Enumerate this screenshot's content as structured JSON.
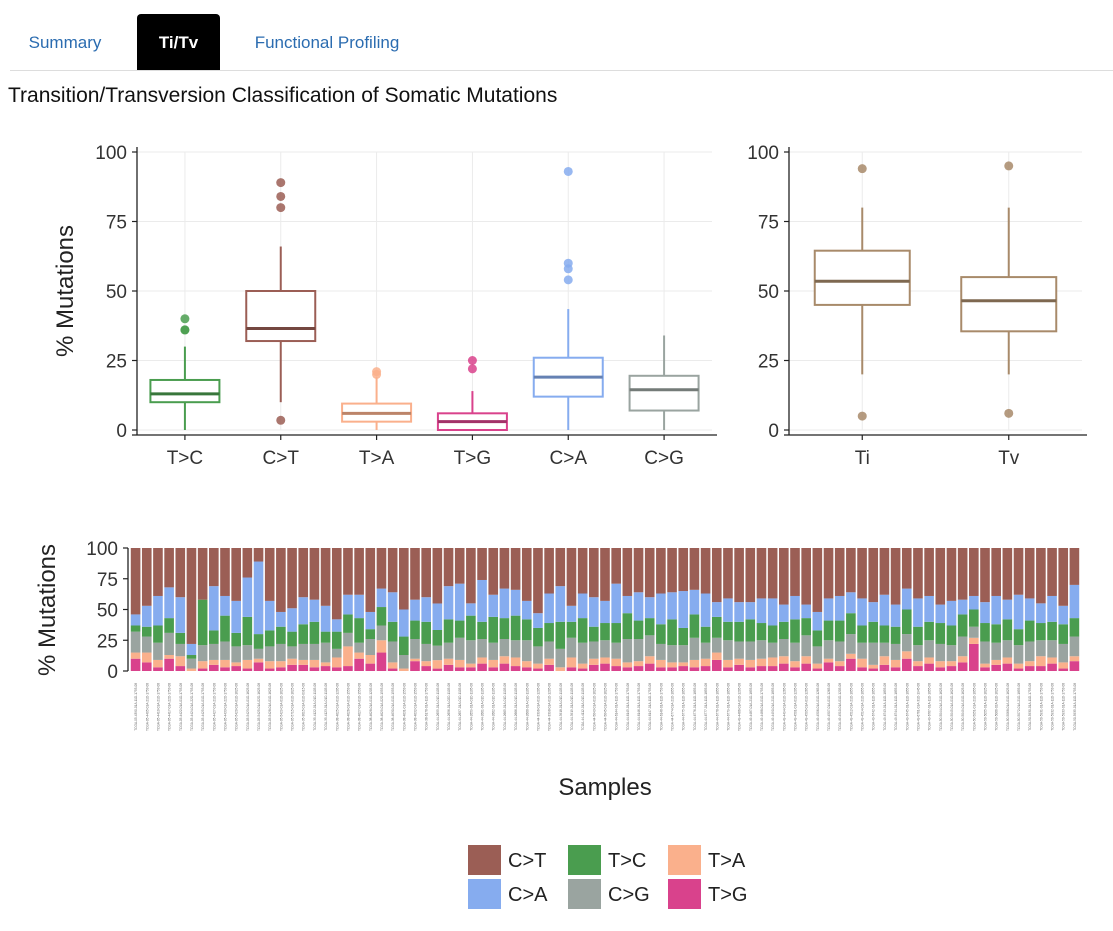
{
  "tabs": [
    {
      "label": "Summary",
      "active": false
    },
    {
      "label": "Ti/Tv",
      "active": true
    },
    {
      "label": "Functional Profiling",
      "active": false
    }
  ],
  "heading": "Transition/Transversion Classification of Somatic Mutations",
  "colors": {
    "C>T": "#9b5e55",
    "T>C": "#4a9d4f",
    "T>A": "#fab08c",
    "T>G": "#d9428c",
    "C>A": "#86acef",
    "C>G": "#9aa4a0",
    "Ti": "#a88a6a",
    "Tv": "#a88a6a"
  },
  "chart_data": [
    {
      "type": "boxplot",
      "ylabel": "% Mutations",
      "ylim": [
        0,
        100
      ],
      "yticks": [
        0,
        25,
        50,
        75,
        100
      ],
      "grid": true,
      "categories": [
        "T>C",
        "C>T",
        "T>A",
        "T>G",
        "C>A",
        "C>G"
      ],
      "boxes": [
        {
          "name": "T>C",
          "whisker_low": 0,
          "q1": 10,
          "median": 13,
          "q3": 18,
          "whisker_high": 30,
          "outliers": [
            36,
            36,
            40
          ]
        },
        {
          "name": "C>T",
          "whisker_low": 10,
          "q1": 32,
          "median": 36.5,
          "q3": 50,
          "whisker_high": 66,
          "outliers": [
            3.5,
            80,
            84,
            89
          ]
        },
        {
          "name": "T>A",
          "whisker_low": 0,
          "q1": 3,
          "median": 6,
          "q3": 9.5,
          "whisker_high": 19,
          "outliers": [
            20,
            21
          ]
        },
        {
          "name": "T>G",
          "whisker_low": 0,
          "q1": 0,
          "median": 3,
          "q3": 6,
          "whisker_high": 14,
          "outliers": [
            22,
            25
          ]
        },
        {
          "name": "C>A",
          "whisker_low": 0,
          "q1": 12,
          "median": 19,
          "q3": 26,
          "whisker_high": 43.5,
          "outliers": [
            54,
            58,
            60,
            93
          ]
        },
        {
          "name": "C>G",
          "whisker_low": 0,
          "q1": 7,
          "median": 14.5,
          "q3": 19.5,
          "whisker_high": 34,
          "outliers": []
        }
      ]
    },
    {
      "type": "boxplot",
      "ylim": [
        0,
        100
      ],
      "yticks": [
        0,
        25,
        50,
        75,
        100
      ],
      "grid": true,
      "categories": [
        "Ti",
        "Tv"
      ],
      "boxes": [
        {
          "name": "Ti",
          "whisker_low": 20,
          "q1": 45,
          "median": 53.5,
          "q3": 64.5,
          "whisker_high": 80,
          "outliers": [
            5,
            94
          ]
        },
        {
          "name": "Tv",
          "whisker_low": 20,
          "q1": 35.5,
          "median": 46.5,
          "q3": 55,
          "whisker_high": 80,
          "outliers": [
            6,
            95
          ]
        }
      ]
    },
    {
      "type": "stacked_bar",
      "ylabel": "% Mutations",
      "xlabel": "Samples",
      "ylim": [
        0,
        100
      ],
      "yticks": [
        0,
        25,
        50,
        75,
        100
      ],
      "stack_order": [
        "T>G",
        "T>A",
        "C>G",
        "T>C",
        "C>A",
        "C>T"
      ],
      "sample_count": 85,
      "legend": {
        "position": "bottom",
        "entries": [
          "C>T",
          "T>C",
          "T>A",
          "C>A",
          "C>G",
          "T>G"
        ]
      },
      "series": [
        {
          "name": "T>G",
          "values": [
            10,
            7,
            3,
            10,
            4,
            0,
            2,
            5,
            3,
            4,
            2,
            7,
            2,
            3,
            5,
            5,
            3,
            4,
            3,
            4,
            10,
            6,
            15,
            2,
            0,
            8,
            4,
            2,
            5,
            3,
            3,
            6,
            3,
            6,
            4,
            3,
            2,
            5,
            0,
            3,
            2,
            5,
            6,
            4,
            3,
            4,
            6,
            3,
            3,
            4,
            3,
            4,
            9,
            3,
            5,
            3,
            4,
            4,
            6,
            3,
            6,
            2,
            7,
            4,
            10,
            3,
            2,
            5,
            3,
            10,
            4,
            6,
            3,
            4,
            7,
            22,
            3,
            5,
            6,
            2,
            4,
            4,
            6,
            2,
            8
          ]
        },
        {
          "name": "T>A",
          "values": [
            5,
            8,
            6,
            3,
            8,
            2,
            6,
            4,
            6,
            3,
            7,
            3,
            6,
            5,
            5,
            4,
            6,
            3,
            8,
            16,
            5,
            7,
            10,
            5,
            2,
            2,
            4,
            7,
            5,
            6,
            3,
            5,
            6,
            6,
            7,
            5,
            4,
            5,
            3,
            8,
            4,
            5,
            5,
            6,
            4,
            4,
            6,
            6,
            4,
            3,
            6,
            6,
            6,
            6,
            5,
            6,
            6,
            7,
            6,
            5,
            6,
            4,
            3,
            4,
            4,
            7,
            3,
            7,
            6,
            6,
            4,
            5,
            5,
            4,
            5,
            5,
            3,
            4,
            5,
            4,
            4,
            8,
            5,
            5,
            4
          ]
        },
        {
          "name": "C>G",
          "values": [
            17,
            13,
            14,
            18,
            10,
            8,
            13,
            13,
            15,
            13,
            12,
            8,
            12,
            14,
            10,
            13,
            13,
            16,
            7,
            11,
            8,
            13,
            12,
            17,
            11,
            16,
            14,
            12,
            13,
            18,
            19,
            15,
            14,
            14,
            14,
            17,
            14,
            14,
            15,
            16,
            17,
            14,
            14,
            13,
            19,
            18,
            17,
            13,
            14,
            14,
            18,
            13,
            12,
            16,
            14,
            15,
            15,
            12,
            14,
            15,
            17,
            14,
            15,
            16,
            16,
            13,
            18,
            11,
            13,
            14,
            13,
            14,
            14,
            13,
            16,
            9,
            18,
            14,
            14,
            15,
            16,
            13,
            14,
            15,
            16
          ]
        },
        {
          "name": "T>C",
          "values": [
            5,
            8,
            14,
            12,
            9,
            3,
            37,
            11,
            21,
            11,
            23,
            12,
            13,
            14,
            12,
            16,
            18,
            9,
            14,
            15,
            20,
            8,
            15,
            16,
            15,
            15,
            18,
            13,
            19,
            14,
            20,
            14,
            21,
            17,
            20,
            17,
            15,
            15,
            22,
            13,
            20,
            12,
            14,
            16,
            21,
            15,
            14,
            16,
            21,
            14,
            19,
            13,
            17,
            15,
            16,
            18,
            14,
            14,
            14,
            19,
            14,
            13,
            16,
            17,
            17,
            14,
            17,
            14,
            14,
            20,
            15,
            15,
            17,
            16,
            18,
            14,
            15,
            15,
            17,
            13,
            17,
            14,
            15,
            16,
            15
          ]
        },
        {
          "name": "C>A",
          "values": [
            9,
            17,
            24,
            25,
            29,
            9,
            0,
            36,
            16,
            26,
            32,
            59,
            24,
            12,
            19,
            22,
            18,
            21,
            10,
            16,
            19,
            14,
            15,
            24,
            22,
            17,
            20,
            22,
            27,
            30,
            10,
            34,
            18,
            24,
            21,
            15,
            12,
            24,
            29,
            13,
            20,
            24,
            18,
            32,
            14,
            23,
            17,
            25,
            22,
            30,
            20,
            27,
            12,
            19,
            16,
            14,
            20,
            22,
            14,
            19,
            11,
            15,
            18,
            20,
            17,
            22,
            16,
            25,
            18,
            17,
            23,
            21,
            15,
            20,
            12,
            11,
            17,
            23,
            16,
            28,
            18,
            16,
            21,
            15,
            27
          ]
        },
        {
          "name": "C>T",
          "values": [
            54,
            47,
            39,
            32,
            40,
            78,
            42,
            31,
            39,
            43,
            24,
            11,
            43,
            52,
            49,
            40,
            42,
            47,
            58,
            38,
            38,
            52,
            33,
            36,
            50,
            42,
            40,
            46,
            31,
            29,
            45,
            26,
            38,
            33,
            34,
            43,
            53,
            37,
            31,
            47,
            37,
            40,
            43,
            29,
            39,
            36,
            40,
            37,
            36,
            35,
            34,
            37,
            44,
            41,
            44,
            44,
            41,
            41,
            46,
            39,
            46,
            52,
            41,
            39,
            36,
            41,
            44,
            38,
            46,
            33,
            41,
            39,
            46,
            43,
            42,
            39,
            44,
            39,
            42,
            38,
            41,
            45,
            39,
            47,
            30
          ]
        }
      ],
      "sample_labels": [
        "TCGA-05-4390-01A-11D-1753-08",
        "TCGA-05-4405-01A-21D-1753-08",
        "TCGA-05-4410-01A-21D-1753-08",
        "TCGA-05-4417-01A-22D-1753-08",
        "TCGA-05-4422-01A-01D-1753-08",
        "TCGA-05-4424-01A-22D-1753-08",
        "TCGA-05-4425-01A-01D-1753-08",
        "TCGA-05-4427-01A-21D-1753-08",
        "TCGA-05-4433-01A-22D-1753-08",
        "TCGA-05-5420-01A-01D-1625-08",
        "TCGA-05-5423-01A-01D-1625-08",
        "TCGA-05-5425-01A-02D-1625-08",
        "TCGA-05-5428-01A-01D-1625-08",
        "TCGA-05-5429-01A-01D-1625-08",
        "TCGA-05-5715-01A-01D-1625-08",
        "TCGA-35-3615-01A-01D-0915-08",
        "TCGA-35-4122-01A-01D-1105-08",
        "TCGA-35-4123-01A-01D-1105-08",
        "TCGA-38-4625-01A-01D-1205-08",
        "TCGA-38-4626-01A-01D-1553-08",
        "TCGA-38-4627-01A-01D-1553-08",
        "TCGA-38-4628-01A-01D-1205-08",
        "TCGA-38-4629-01A-02D-1553-08",
        "TCGA-38-4630-01A-01D-1553-08",
        "TCGA-38-4631-01A-01D-1553-08",
        "TCGA-38-4632-01A-01D-1553-08",
        "TCGA-38-6178-01A-11D-1753-08",
        "TCGA-44-2655-01A-01D-1105-08",
        "TCGA-44-2656-01A-02D-1105-08",
        "TCGA-44-2657-01A-01D-1105-08",
        "TCGA-44-2659-01A-01D-1105-08",
        "TCGA-44-2661-01A-01D-1105-08",
        "TCGA-44-2662-01A-01D-1105-08",
        "TCGA-44-2665-01A-01D-1105-08",
        "TCGA-44-2666-01A-01D-1105-08",
        "TCGA-44-2668-01A-01D-1105-08",
        "TCGA-44-3396-01A-01D-1205-08",
        "TCGA-44-3398-01A-01D-1205-08",
        "TCGA-44-3918-01A-01D-1105-08",
        "TCGA-44-3919-01A-01D-1105-08",
        "TCGA-44-4112-01A-01D-1105-08",
        "TCGA-44-5643-01A-01D-1625-08",
        "TCGA-44-5645-01A-01D-1625-08",
        "TCGA-44-6144-01A-11D-1753-08",
        "TCGA-44-6145-01A-11D-1753-08",
        "TCGA-44-6146-01A-11D-1753-08",
        "TCGA-44-6147-01A-11D-1753-08",
        "TCGA-44-6148-01A-11D-1753-08",
        "TCGA-44-6774-01A-21D-1855-08",
        "TCGA-44-6775-01A-11D-1855-08",
        "TCGA-44-6776-01A-11D-1855-08",
        "TCGA-44-6777-01A-11D-1855-08",
        "TCGA-44-6778-01A-11D-1855-08",
        "TCGA-44-6779-01A-11D-1855-08",
        "TCGA-49-4486-01A-01D-1205-08",
        "TCGA-49-4487-01A-21D-1855-08",
        "TCGA-49-4488-01A-01D-1753-08",
        "TCGA-49-4490-01A-21D-1855-08",
        "TCGA-49-4494-01A-01D-1265-08",
        "TCGA-49-4501-01A-01D-1205-08",
        "TCGA-49-4505-01A-01D-1265-08",
        "TCGA-49-4506-01A-01D-1265-08",
        "TCGA-49-4507-01A-01D-1265-08",
        "TCGA-49-4510-01A-01D-1205-08",
        "TCGA-49-4512-01A-21D-1855-08",
        "TCGA-49-4514-01A-21D-1855-08",
        "TCGA-49-6742-01A-11D-1855-08",
        "TCGA-49-6743-01A-11D-1855-08",
        "TCGA-49-6744-01A-11D-1855-08",
        "TCGA-49-6745-01A-11D-1855-08",
        "TCGA-49-6761-01A-31D-1945-08",
        "TCGA-49-6767-01A-11D-1855-08",
        "TCGA-50-5044-01A-21D-1625-08",
        "TCGA-50-5045-01A-01D-1625-08",
        "TCGA-50-5049-01A-01D-1625-08",
        "TCGA-50-5051-01A-21D-1855-08",
        "TCGA-50-5055-01A-11D-1625-08",
        "TCGA-50-5066-02A-11D-1625-08",
        "TCGA-50-5068-01A-01D-1625-08",
        "TCGA-50-5072-01A-21D-1855-08",
        "TCGA-50-5930-01A-11D-1753-08",
        "TCGA-50-5931-01A-11D-1753-08",
        "TCGA-50-5932-01A-11D-1753-08",
        "TCGA-50-5933-01A-11D-1753-08",
        "TCGA-50-5935-01A-11D-1753-08"
      ]
    }
  ]
}
